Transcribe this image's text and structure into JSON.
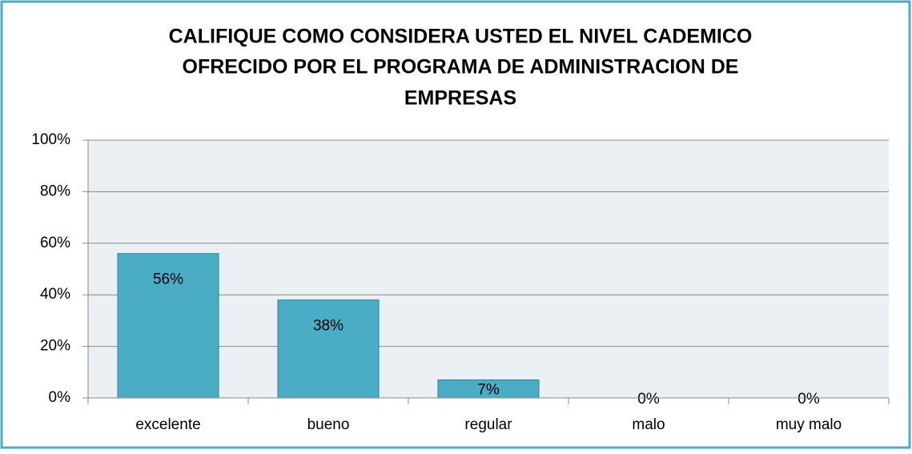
{
  "chart_data": {
    "type": "bar",
    "title": [
      "CALIFIQUE COMO CONSIDERA USTED EL NIVEL CADEMICO",
      "OFRECIDO POR EL PROGRAMA DE ADMINISTRACION DE",
      "EMPRESAS"
    ],
    "categories": [
      "excelente",
      "bueno",
      "regular",
      "malo",
      "muy malo"
    ],
    "values": [
      56,
      38,
      7,
      0,
      0
    ],
    "value_labels": [
      "56%",
      "38%",
      "7%",
      "0%",
      "0%"
    ],
    "color": "#4bacc6",
    "ylim": [
      0,
      100
    ],
    "yticks": [
      {
        "value": 0,
        "label": "0%"
      },
      {
        "value": 20,
        "label": "20%"
      },
      {
        "value": 40,
        "label": "40%"
      },
      {
        "value": 60,
        "label": "60%"
      },
      {
        "value": 80,
        "label": "80%"
      },
      {
        "value": 100,
        "label": "100%"
      }
    ],
    "grid": true
  }
}
